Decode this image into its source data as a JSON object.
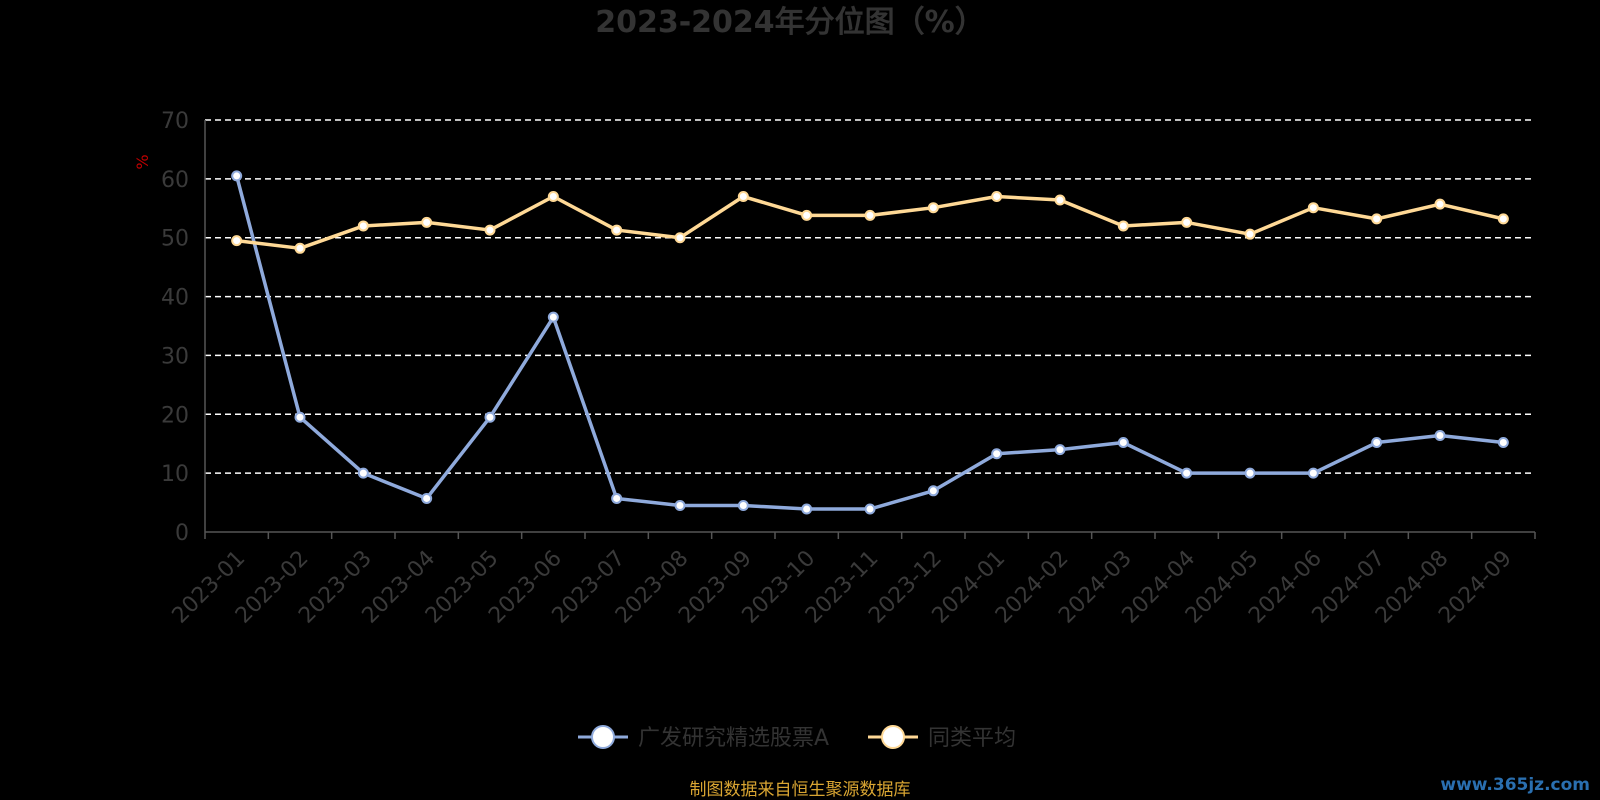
{
  "chart_data": {
    "type": "line",
    "title": "2023-2024年分位图（%）",
    "ylabel": "%",
    "ylim": [
      0,
      70
    ],
    "yticks": [
      0,
      10,
      20,
      30,
      40,
      50,
      60,
      70
    ],
    "grid": true,
    "legend_position": "bottom",
    "categories": [
      "2023-01",
      "2023-02",
      "2023-03",
      "2023-04",
      "2023-05",
      "2023-06",
      "2023-07",
      "2023-08",
      "2023-09",
      "2023-10",
      "2023-11",
      "2023-12",
      "2024-01",
      "2024-02",
      "2024-03",
      "2024-04",
      "2024-05",
      "2024-06",
      "2024-07",
      "2024-08",
      "2024-09"
    ],
    "series": [
      {
        "name": "广发研究精选股票A",
        "color": "#8faadc",
        "values": [
          60.5,
          19.5,
          10,
          5.7,
          19.5,
          36.5,
          5.7,
          4.5,
          4.5,
          3.9,
          3.9,
          7,
          13.3,
          14,
          15.2,
          10,
          10,
          10,
          15.2,
          16.4,
          15.2
        ]
      },
      {
        "name": "同类平均",
        "color": "#ffd996",
        "values": [
          49.5,
          48.2,
          52,
          52.6,
          51.3,
          57,
          51.3,
          50,
          57,
          53.8,
          53.8,
          55.1,
          57,
          56.4,
          52,
          52.6,
          50.6,
          55.1,
          53.2,
          55.7,
          53.2
        ]
      }
    ]
  },
  "footer": {
    "source": "制图数据来自恒生聚源数据库",
    "watermark": "www.365jz.com"
  }
}
